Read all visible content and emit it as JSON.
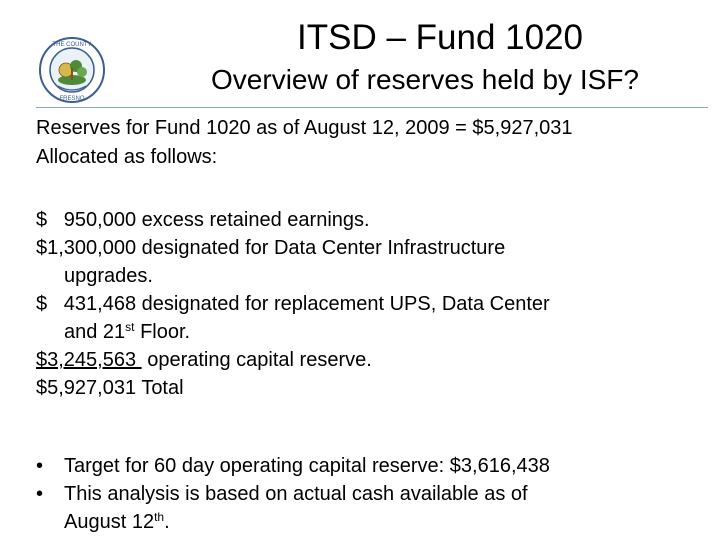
{
  "header": {
    "title": "ITSD – Fund 1020",
    "subtitle": "Overview of reserves held by ISF?",
    "seal_text": "THE COUNTY OF FRESNO"
  },
  "intro": {
    "line1": "Reserves for Fund 1020 as of August 12, 2009 = $5,927,031",
    "line2": "Allocated as follows:"
  },
  "allocations": {
    "r1_amount": "$   950,000",
    "r1_desc": "excess retained earnings.",
    "r2_amount": "$1,300,000",
    "r2_desc": "designated for Data Center Infrastructure",
    "r2_cont": "upgrades.",
    "r3_amount": "$   431,468",
    "r3_desc": "designated for replacement UPS, Data Center",
    "r3_cont_a": "and 21",
    "r3_sup": "st",
    "r3_cont_b": " Floor.",
    "r4_amount": "$3,245,563 ",
    "r4_desc": "operating capital reserve.",
    "r5_amount": "$5,927,031",
    "r5_desc": "Total"
  },
  "bullets": {
    "glyph": "•",
    "b1": "Target for 60 day operating capital reserve: $3,616,438",
    "b2_line1": "This analysis is based on actual cash available as of",
    "b2_line2a": "August 12",
    "b2_sup": "th",
    "b2_line2b": "."
  },
  "colors": {
    "rule": "#8aa6c8",
    "seal_ring": "#3b5f8f",
    "seal_green": "#4f8a3a",
    "seal_gold": "#d9b84a"
  }
}
